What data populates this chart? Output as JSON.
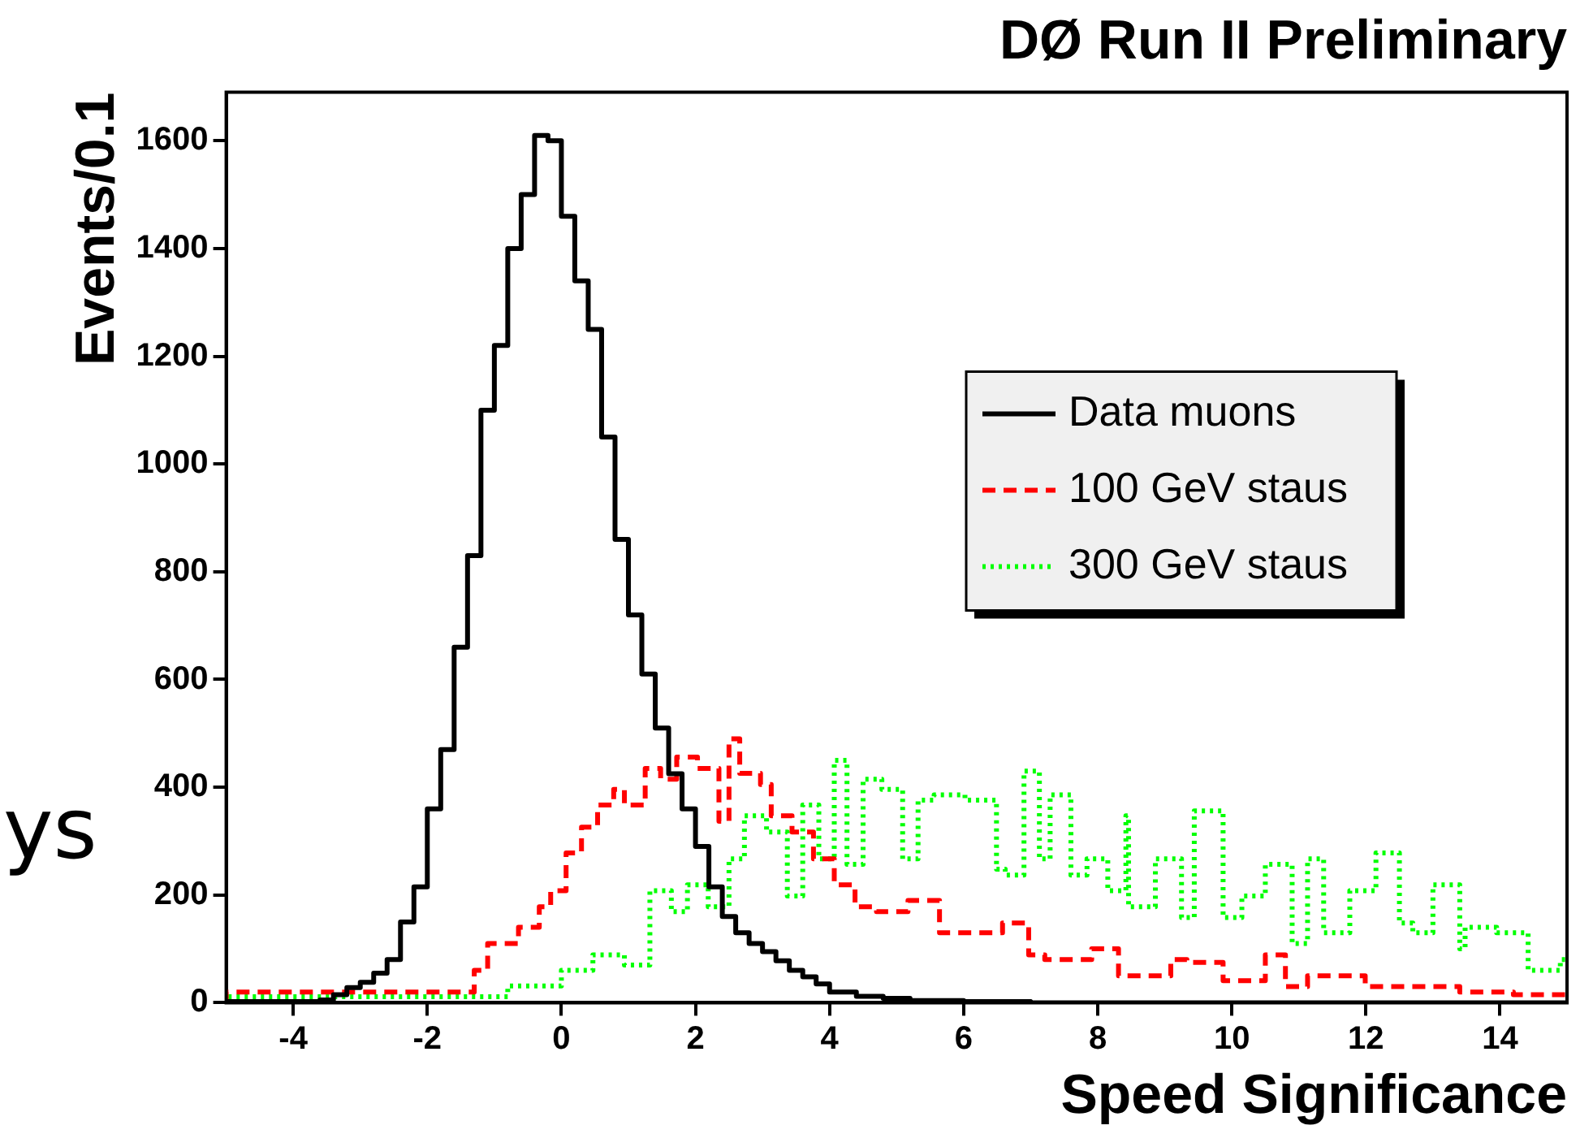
{
  "chart_data": {
    "type": "step",
    "title": "DØ Run II Preliminary",
    "xlabel": "Speed Significance",
    "ylabel": "Events/0.1",
    "xlim": [
      -5,
      15
    ],
    "xticks": [
      -4,
      -2,
      0,
      2,
      4,
      6,
      8,
      10,
      12,
      14
    ],
    "ylim": [
      0,
      1690
    ],
    "yticks": [
      0,
      200,
      400,
      600,
      800,
      1000,
      1200,
      1400,
      1600
    ],
    "grid": false,
    "legend": "top right",
    "annotations": [
      "ys"
    ],
    "series": [
      {
        "name": "Data muons",
        "color": "#000000",
        "line_style": "solid",
        "x": [
          -5,
          -3.6,
          -3.4,
          -3.2,
          -3.0,
          -2.8,
          -2.6,
          -2.4,
          -2.2,
          -2.0,
          -1.8,
          -1.6,
          -1.4,
          -1.2,
          -1.0,
          -0.8,
          -0.6,
          -0.4,
          -0.2,
          0.0,
          0.2,
          0.4,
          0.6,
          0.8,
          1.0,
          1.2,
          1.4,
          1.6,
          1.8,
          2.0,
          2.2,
          2.4,
          2.6,
          2.8,
          3.0,
          3.2,
          3.4,
          3.6,
          3.8,
          4.0,
          4.4,
          4.8,
          5.2,
          6.0,
          7.0,
          8.0,
          15
        ],
        "values": [
          0,
          2,
          5,
          15,
          28,
          38,
          55,
          80,
          150,
          215,
          360,
          470,
          660,
          830,
          1100,
          1220,
          1400,
          1500,
          1610,
          1600,
          1460,
          1340,
          1250,
          1050,
          860,
          720,
          610,
          510,
          425,
          360,
          290,
          215,
          160,
          130,
          110,
          95,
          78,
          60,
          48,
          35,
          20,
          12,
          8,
          4,
          2,
          0,
          0
        ]
      },
      {
        "name": "100 GeV staus",
        "color": "#ff0000",
        "line_style": "dashed",
        "x": [
          -5,
          -1.3,
          -1.1,
          -0.64,
          -0.33,
          -0.16,
          0.07,
          0.3,
          0.54,
          0.78,
          0.94,
          1.25,
          1.48,
          1.72,
          2.03,
          2.35,
          2.5,
          2.66,
          2.97,
          3.13,
          3.44,
          3.76,
          4.07,
          4.38,
          4.7,
          5.17,
          5.64,
          6.02,
          6.58,
          6.97,
          7.21,
          7.91,
          8.31,
          9.09,
          9.33,
          9.87,
          10.5,
          10.8,
          11.13,
          11.99,
          12.62,
          13.4,
          14.2,
          14.9,
          15
        ],
        "values": [
          0,
          20,
          60,
          110,
          140,
          178,
          208,
          278,
          326,
          367,
          396,
          367,
          435,
          415,
          456,
          435,
          337,
          490,
          426,
          405,
          347,
          317,
          267,
          219,
          178,
          169,
          190,
          130,
          130,
          148,
          89,
          80,
          100,
          50,
          80,
          75,
          41,
          89,
          30,
          50,
          30,
          30,
          20,
          15,
          15
        ]
      },
      {
        "name": "300 GeV staus",
        "color": "#00ff00",
        "line_style": "dotted",
        "x": [
          -5,
          -0.8,
          0,
          0.47,
          0.94,
          1.32,
          1.64,
          1.88,
          2.19,
          2.5,
          2.73,
          3.06,
          3.37,
          3.6,
          3.84,
          4.07,
          4.26,
          4.5,
          4.78,
          5.09,
          5.32,
          5.56,
          6.02,
          6.49,
          6.62,
          6.9,
          7.13,
          7.29,
          7.6,
          7.84,
          8.15,
          8.42,
          8.46,
          8.86,
          9.25,
          9.44,
          9.87,
          10.15,
          10.5,
          10.9,
          11.13,
          11.37,
          11.76,
          12.15,
          12.5,
          12.7,
          13.0,
          13.4,
          13.48,
          13.95,
          14.42,
          14.9,
          15
        ],
        "values": [
          0,
          11,
          31,
          60,
          89,
          70,
          208,
          169,
          219,
          178,
          267,
          347,
          317,
          198,
          367,
          267,
          450,
          257,
          415,
          396,
          267,
          376,
          386,
          376,
          248,
          237,
          430,
          267,
          386,
          237,
          267,
          208,
          347,
          178,
          267,
          158,
          356,
          158,
          198,
          257,
          110,
          267,
          130,
          208,
          278,
          148,
          130,
          219,
          100,
          140,
          130,
          60,
          80
        ]
      }
    ]
  }
}
